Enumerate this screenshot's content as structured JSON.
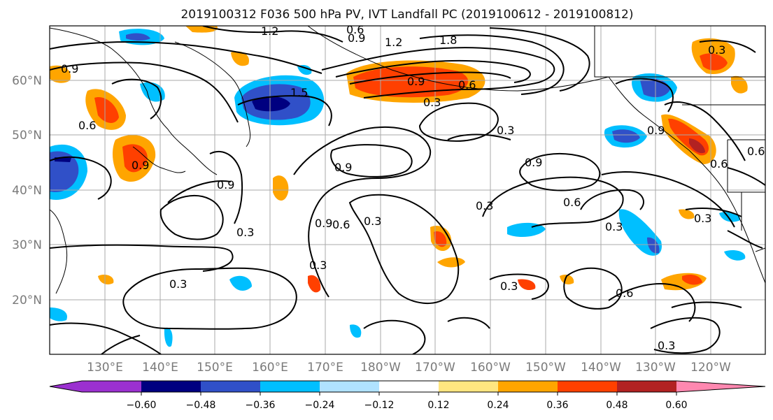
{
  "map": {
    "title": "2019100312 F036 500 hPa PV, IVT Landfall PC (2019100612 - 2019100812)",
    "lat_labels": [
      "60°N",
      "50°N",
      "40°N",
      "30°N",
      "20°N"
    ],
    "lon_labels": [
      "130°E",
      "140°E",
      "150°E",
      "160°E",
      "170°E",
      "180°W",
      "170°W",
      "160°W",
      "150°W",
      "140°W",
      "130°W",
      "120°W"
    ],
    "contour_labels": [
      "1.2",
      "0.6",
      "0.9",
      "1.2",
      "1.8",
      "0.9",
      "0.9",
      "0.6",
      "1.5",
      "0.3",
      "0.6",
      "0.3",
      "0.9",
      "0.9",
      "0.9",
      "0.6",
      "0.9",
      "0.9",
      "0.6",
      "0.3",
      "0.9",
      "0.6",
      "0.3",
      "0.3",
      "0.6",
      "0.3",
      "0.3",
      "0.3",
      "0.3",
      "0.3",
      "0.3",
      "0.6",
      "0.3"
    ]
  },
  "colorbar": {
    "ticks": [
      "−0.60",
      "−0.48",
      "−0.36",
      "−0.24",
      "−0.12",
      "0.12",
      "0.24",
      "0.36",
      "0.48",
      "0.60"
    ],
    "colors": [
      "#9b30d0",
      "#000080",
      "#3050c8",
      "#00bfff",
      "#b0e2ff",
      "#ffffff",
      "#ffe680",
      "#ffa500",
      "#ff4000",
      "#b22222",
      "#ff88b0"
    ]
  },
  "colors": {
    "neg_strong": "#3050c8",
    "neg_mid": "#00bfff",
    "neg_weak": "#b0e2ff",
    "neg_max": "#000080",
    "pos_weak": "#ffe680",
    "pos_mid": "#ffa500",
    "pos_strong": "#ff4000",
    "pos_max": "#b22222"
  }
}
